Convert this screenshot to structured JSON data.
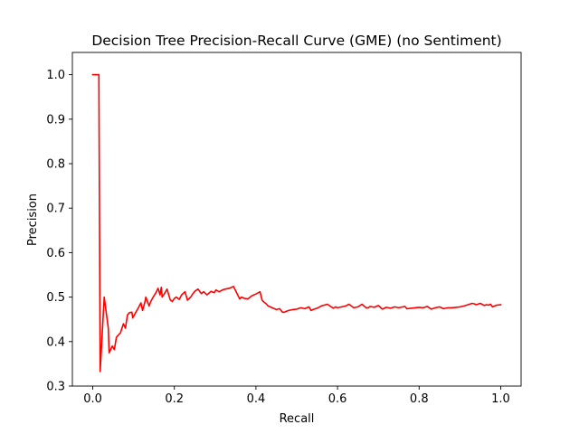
{
  "chart_data": {
    "type": "line",
    "title": "Decision Tree Precision-Recall Curve (GME) (no Sentiment)",
    "xlabel": "Recall",
    "ylabel": "Precision",
    "xlim": [
      -0.05,
      1.05
    ],
    "ylim": [
      0.3,
      1.05
    ],
    "xticks": [
      0.0,
      0.2,
      0.4,
      0.6,
      0.8,
      1.0
    ],
    "xtick_labels": [
      "0.0",
      "0.2",
      "0.4",
      "0.6",
      "0.8",
      "1.0"
    ],
    "yticks": [
      0.3,
      0.4,
      0.5,
      0.6,
      0.7,
      0.8,
      0.9,
      1.0
    ],
    "ytick_labels": [
      "0.3",
      "0.4",
      "0.5",
      "0.6",
      "0.7",
      "0.8",
      "0.9",
      "1.0"
    ],
    "grid": false,
    "legend": false,
    "series": [
      {
        "color": "#ff0000",
        "x": [
          0.0,
          0.015,
          0.015,
          0.018,
          0.028,
          0.038,
          0.04,
          0.048,
          0.053,
          0.058,
          0.068,
          0.075,
          0.08,
          0.085,
          0.09,
          0.096,
          0.098,
          0.105,
          0.112,
          0.118,
          0.122,
          0.128,
          0.13,
          0.138,
          0.142,
          0.148,
          0.155,
          0.16,
          0.165,
          0.168,
          0.17,
          0.175,
          0.177,
          0.182,
          0.19,
          0.195,
          0.2,
          0.205,
          0.212,
          0.218,
          0.226,
          0.232,
          0.24,
          0.244,
          0.25,
          0.258,
          0.266,
          0.272,
          0.28,
          0.29,
          0.298,
          0.302,
          0.31,
          0.318,
          0.325,
          0.335,
          0.345,
          0.358,
          0.36,
          0.365,
          0.372,
          0.38,
          0.39,
          0.4,
          0.41,
          0.415,
          0.418,
          0.425,
          0.43,
          0.44,
          0.45,
          0.458,
          0.465,
          0.47,
          0.472,
          0.48,
          0.49,
          0.5,
          0.51,
          0.52,
          0.53,
          0.535,
          0.54,
          0.55,
          0.56,
          0.575,
          0.59,
          0.595,
          0.6,
          0.61,
          0.62,
          0.628,
          0.64,
          0.65,
          0.66,
          0.67,
          0.675,
          0.68,
          0.69,
          0.7,
          0.71,
          0.72,
          0.73,
          0.74,
          0.75,
          0.765,
          0.77,
          0.78,
          0.8,
          0.81,
          0.82,
          0.83,
          0.84,
          0.85,
          0.86,
          0.87,
          0.88,
          0.89,
          0.9,
          0.91,
          0.92,
          0.93,
          0.935,
          0.94,
          0.95,
          0.96,
          0.965,
          0.97,
          0.975,
          0.98,
          0.99,
          1.0
        ],
        "y": [
          1.0,
          1.0,
          0.995,
          0.333,
          0.5,
          0.43,
          0.375,
          0.39,
          0.382,
          0.41,
          0.42,
          0.44,
          0.43,
          0.46,
          0.465,
          0.466,
          0.453,
          0.465,
          0.476,
          0.487,
          0.47,
          0.49,
          0.5,
          0.48,
          0.49,
          0.5,
          0.51,
          0.52,
          0.505,
          0.522,
          0.5,
          0.507,
          0.51,
          0.518,
          0.494,
          0.49,
          0.497,
          0.5,
          0.495,
          0.505,
          0.512,
          0.493,
          0.5,
          0.506,
          0.513,
          0.518,
          0.508,
          0.512,
          0.505,
          0.513,
          0.51,
          0.516,
          0.512,
          0.516,
          0.518,
          0.52,
          0.524,
          0.5,
          0.496,
          0.5,
          0.497,
          0.496,
          0.503,
          0.507,
          0.512,
          0.493,
          0.49,
          0.485,
          0.48,
          0.476,
          0.472,
          0.474,
          0.466,
          0.466,
          0.467,
          0.47,
          0.472,
          0.473,
          0.476,
          0.474,
          0.478,
          0.47,
          0.472,
          0.475,
          0.48,
          0.484,
          0.475,
          0.478,
          0.476,
          0.478,
          0.48,
          0.484,
          0.476,
          0.478,
          0.484,
          0.476,
          0.476,
          0.479,
          0.477,
          0.481,
          0.473,
          0.477,
          0.475,
          0.478,
          0.476,
          0.479,
          0.474,
          0.475,
          0.477,
          0.476,
          0.479,
          0.473,
          0.476,
          0.478,
          0.474,
          0.476,
          0.476,
          0.477,
          0.478,
          0.48,
          0.483,
          0.486,
          0.485,
          0.483,
          0.486,
          0.481,
          0.483,
          0.482,
          0.484,
          0.478,
          0.482,
          0.483
        ]
      }
    ]
  }
}
